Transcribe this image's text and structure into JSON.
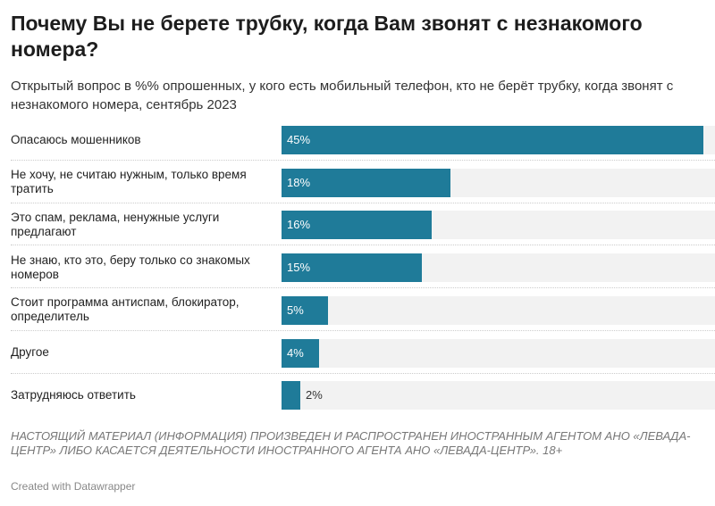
{
  "header": {
    "title": "Почему Вы не берете трубку, когда Вам звонят с незнакомого номера?",
    "subtitle": "Открытый вопрос в %% опрошенных, у кого есть мобильный телефон, кто не берёт трубку, когда звонят с незнакомого номера, сентябрь 2023"
  },
  "chart_data": {
    "type": "bar",
    "orientation": "horizontal",
    "categories": [
      "Опасаюсь мошенников",
      "Не хочу, не считаю нужным, только время тратить",
      "Это спам, реклама, ненужные услуги предлагают",
      "Не знаю, кто это, беру только со знакомых номеров",
      "Стоит программа антиспам, блокиратор, определитель",
      "Другое",
      "Затрудняюсь ответить"
    ],
    "values": [
      45,
      18,
      16,
      15,
      5,
      4,
      2
    ],
    "labels": [
      "45%",
      "18%",
      "16%",
      "15%",
      "5%",
      "4%",
      "2%"
    ],
    "xlim": [
      0,
      46.2
    ],
    "bar_color": "#1f7b99",
    "track_color": "#f2f2f2",
    "grid": false
  },
  "footer": {
    "notes": "НАСТОЯЩИЙ МАТЕРИАЛ (ИНФОРМАЦИЯ) ПРОИЗВЕДЕН И РАСПРОСТРАНЕН ИНОСТРАННЫМ АГЕНТОМ АНО «ЛЕВАДА-ЦЕНТР» ЛИБО КАСАЕТСЯ ДЕЯТЕЛЬНОСТИ ИНОСТРАННОГО АГЕНТА АНО «ЛЕВАДА-ЦЕНТР». 18+",
    "credit": "Created with Datawrapper"
  }
}
